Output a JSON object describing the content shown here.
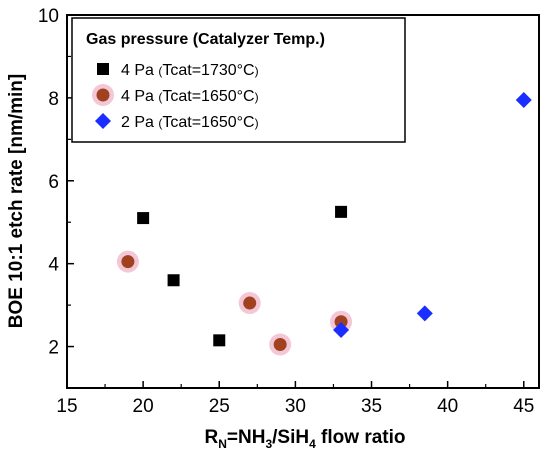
{
  "chart_data": {
    "type": "scatter",
    "ylabel": "BOE 10:1 etch rate [nm/min]",
    "xlabel": {
      "prefix": "R",
      "prefix_sub": "N",
      "mid1": "=NH",
      "sub1": "3",
      "mid2": "/SiH",
      "sub2": "4",
      "suffix": " flow ratio"
    },
    "xlim": [
      15,
      46
    ],
    "ylim": [
      1,
      10
    ],
    "xticks": [
      "15",
      "20",
      "25",
      "30",
      "35",
      "40",
      "45"
    ],
    "yticks": [
      "2",
      "4",
      "6",
      "8",
      "10"
    ],
    "grid": false,
    "legend_title": "Gas pressure (Catalyzer Temp.)",
    "legend_position": "top-left",
    "series": [
      {
        "name": "4 Pa (Tcat=1730°C)",
        "name_main": "4 Pa",
        "name_paren": "(Tcat=1730°C)",
        "marker": "square",
        "color": "#000000",
        "points": [
          [
            20,
            5.1
          ],
          [
            22,
            3.6
          ],
          [
            25,
            2.15
          ],
          [
            33,
            5.25
          ]
        ]
      },
      {
        "name": "4 Pa (Tcat=1650°C)",
        "name_main": "4 Pa",
        "name_paren": "(Tcat=1650°C)",
        "marker": "circle",
        "color": "#a0421f",
        "glow": "#f0b4c8",
        "points": [
          [
            19,
            4.05
          ],
          [
            27,
            3.05
          ],
          [
            29,
            2.05
          ],
          [
            33,
            2.6
          ]
        ]
      },
      {
        "name": "2 Pa (Tcat=1650°C)",
        "name_main": "2 Pa",
        "name_paren": "(Tcat=1650°C)",
        "marker": "diamond",
        "color": "#1a2fff",
        "points": [
          [
            33,
            2.4
          ],
          [
            38.5,
            2.8
          ],
          [
            45,
            7.95
          ]
        ]
      }
    ]
  }
}
